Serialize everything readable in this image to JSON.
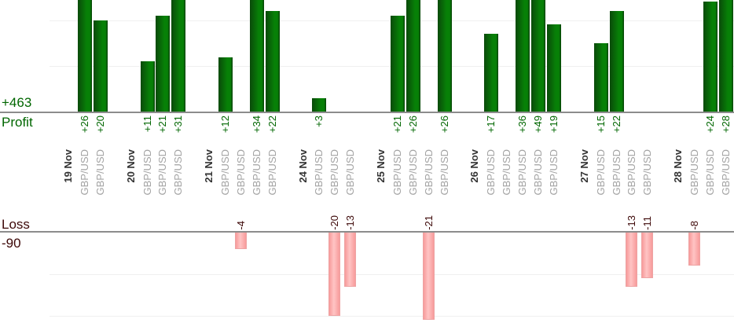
{
  "colors": {
    "profit_text": "#006600",
    "loss_text": "#3c0707",
    "date_text": "#333333",
    "instrument_text": "#a3a3a3",
    "axis_line": "#8c8c8c",
    "gridline": "#f0f0f0",
    "profit_bar_dark": "#0a4a0a",
    "profit_bar_bright": "#078007",
    "profit_bar_edge": "#053f05",
    "loss_bar_dark": "#f79b9b",
    "loss_bar_light": "#ffc4c4",
    "loss_bar_border": "#eda3a3",
    "background": "#ffffff"
  },
  "axes": {
    "profit_total": "+463",
    "profit_title": "Profit",
    "loss_title": "Loss",
    "loss_total": "-90"
  },
  "chart_data": {
    "type": "bar",
    "title": "",
    "xlabel": "",
    "ylabel_top_panel": "Profit",
    "ylabel_bottom_panel": "Loss",
    "profit_total": 463,
    "loss_total": -90,
    "gridline_step": 10,
    "grid": true,
    "legend": false,
    "note": "Two stacked panels: profits grow upward from top baseline (bars taller than ~24 are clipped by the viewport top), losses grow downward from lower baseline. Each bar is one GBP/USD trade grouped by date.",
    "groups": [
      {
        "date": "19 Nov",
        "trades": [
          {
            "instrument": "GBP/USD",
            "value": 26,
            "label": "+26"
          },
          {
            "instrument": "GBP/USD",
            "value": 20,
            "label": "+20"
          }
        ]
      },
      {
        "date": "20 Nov",
        "trades": [
          {
            "instrument": "GBP/USD",
            "value": 11,
            "label": "+11"
          },
          {
            "instrument": "GBP/USD",
            "value": 21,
            "label": "+21"
          },
          {
            "instrument": "GBP/USD",
            "value": 31,
            "label": "+31"
          }
        ]
      },
      {
        "date": "21 Nov",
        "trades": [
          {
            "instrument": "GBP/USD",
            "value": 12,
            "label": "+12"
          },
          {
            "instrument": "GBP/USD",
            "value": -4,
            "label": "-4"
          },
          {
            "instrument": "GBP/USD",
            "value": 34,
            "label": "+34"
          },
          {
            "instrument": "GBP/USD",
            "value": 22,
            "label": "+22"
          }
        ]
      },
      {
        "date": "24 Nov",
        "trades": [
          {
            "instrument": "GBP/USD",
            "value": 3,
            "label": "+3"
          },
          {
            "instrument": "GBP/USD",
            "value": -20,
            "label": "-20"
          },
          {
            "instrument": "GBP/USD",
            "value": -13,
            "label": "-13"
          }
        ]
      },
      {
        "date": "25 Nov",
        "trades": [
          {
            "instrument": "GBP/USD",
            "value": 21,
            "label": "+21"
          },
          {
            "instrument": "GBP/USD",
            "value": 26,
            "label": "+26"
          },
          {
            "instrument": "GBP/USD",
            "value": -21,
            "label": "-21"
          },
          {
            "instrument": "GBP/USD",
            "value": 26,
            "label": "+26"
          }
        ]
      },
      {
        "date": "26 Nov",
        "trades": [
          {
            "instrument": "GBP/USD",
            "value": 17,
            "label": "+17"
          },
          {
            "instrument": "GBP/USD",
            "value": 0,
            "label": ""
          },
          {
            "instrument": "GBP/USD",
            "value": 36,
            "label": "+36"
          },
          {
            "instrument": "GBP/USD",
            "value": 49,
            "label": "+49"
          },
          {
            "instrument": "GBP/USD",
            "value": 19,
            "label": "+19"
          }
        ]
      },
      {
        "date": "27 Nov",
        "trades": [
          {
            "instrument": "GBP/USD",
            "value": 15,
            "label": "+15"
          },
          {
            "instrument": "GBP/USD",
            "value": 22,
            "label": "+22"
          },
          {
            "instrument": "GBP/USD",
            "value": -13,
            "label": "-13"
          },
          {
            "instrument": "GBP/USD",
            "value": -11,
            "label": "-11"
          }
        ]
      },
      {
        "date": "28 Nov",
        "trades": [
          {
            "instrument": "GBP/USD",
            "value": -8,
            "label": "-8"
          },
          {
            "instrument": "GBP/USD",
            "value": 24,
            "label": "+24"
          },
          {
            "instrument": "GBP/USD",
            "value": 28,
            "label": "+28"
          }
        ]
      }
    ]
  }
}
